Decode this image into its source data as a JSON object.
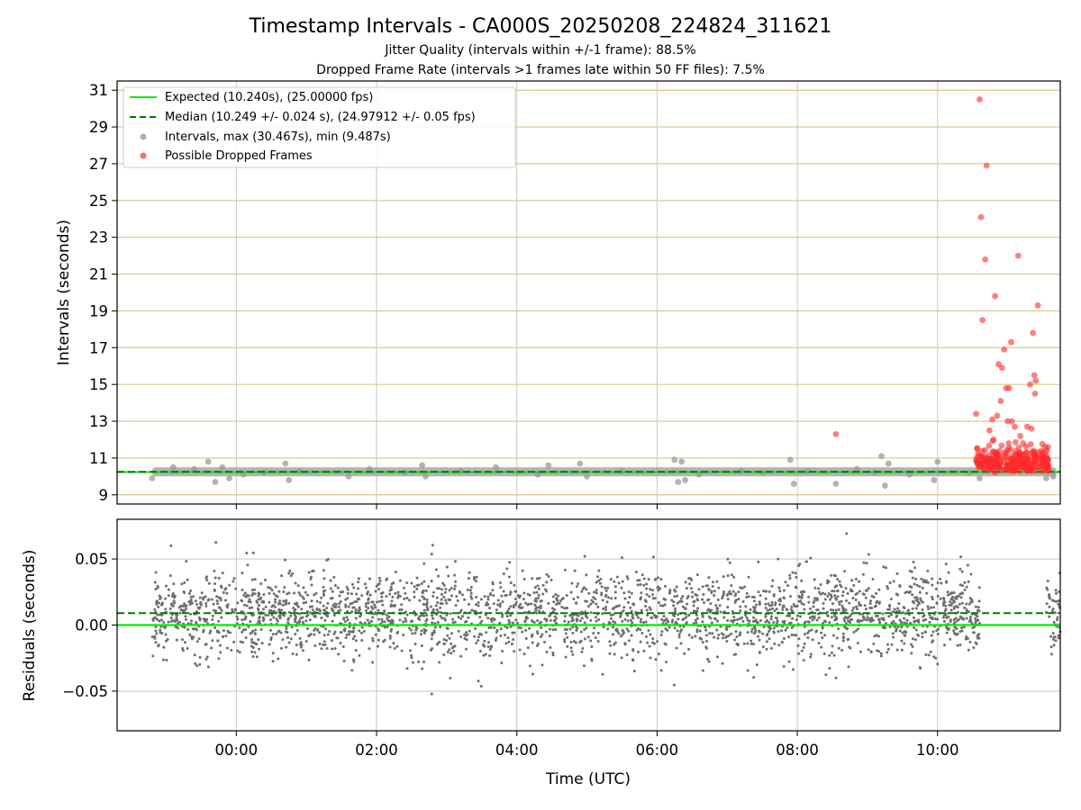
{
  "figure": {
    "title": "Timestamp Intervals - CA000S_20250208_224824_311621",
    "subtitle_1": "Jitter Quality (intervals within +/-1 frame): 88.5%",
    "subtitle_2": "Dropped Frame Rate (intervals >1 frames late within 50 FF files): 7.5%"
  },
  "colors": {
    "expected": "#00ee00",
    "median": "#007a00",
    "intervals": "#9a9a9a",
    "dropped": "#ff2a2a",
    "residuals": "#6e6e6e",
    "top_hgrid": "#d9c684",
    "grid": "#c8c8c8"
  },
  "chart_data": [
    {
      "type": "scatter",
      "panel": "intervals",
      "ylabel": "Intervals (seconds)",
      "xlabel": "",
      "x_unit": "hours UTC (continuous from 00:00)",
      "xlim": [
        -1.7,
        11.75
      ],
      "ylim": [
        8.5,
        31.5
      ],
      "x_ticks": [
        0,
        2,
        4,
        6,
        8,
        10
      ],
      "x_tick_labels": [
        "00:00",
        "02:00",
        "04:00",
        "06:00",
        "08:00",
        "10:00"
      ],
      "y_ticks": [
        9,
        11,
        13,
        15,
        17,
        19,
        21,
        23,
        25,
        27,
        29,
        31
      ],
      "y_tick_labels": [
        "9",
        "11",
        "13",
        "15",
        "17",
        "19",
        "21",
        "23",
        "25",
        "27",
        "29",
        "31"
      ],
      "legend_position": "top-left",
      "series": [
        {
          "name": "Expected (10.240s), (25.00000 fps)",
          "kind": "hline",
          "y": 10.24
        },
        {
          "name": "Median (10.249 +/- 0.024 s), (24.97912 +/- 0.05 fps)",
          "kind": "hline-dashed",
          "y": 10.249
        },
        {
          "name": "Intervals, max (30.467s), min (9.487s)",
          "kind": "band-and-points",
          "x_range": [
            -1.2,
            11.7
          ],
          "y_center": 10.25,
          "points": [
            [
              -1.2,
              9.9
            ],
            [
              -0.9,
              10.5
            ],
            [
              -0.6,
              10.4
            ],
            [
              -0.4,
              10.8
            ],
            [
              -0.3,
              9.7
            ],
            [
              -0.2,
              10.5
            ],
            [
              -0.1,
              9.9
            ],
            [
              0.1,
              10.1
            ],
            [
              0.4,
              10.2
            ],
            [
              0.7,
              10.7
            ],
            [
              0.75,
              9.8
            ],
            [
              0.9,
              10.3
            ],
            [
              1.6,
              10.0
            ],
            [
              1.9,
              10.4
            ],
            [
              2.4,
              10.2
            ],
            [
              2.65,
              10.6
            ],
            [
              2.7,
              10.0
            ],
            [
              3.2,
              10.3
            ],
            [
              3.7,
              10.5
            ],
            [
              4.3,
              10.1
            ],
            [
              4.45,
              10.6
            ],
            [
              4.9,
              10.7
            ],
            [
              5.0,
              10.0
            ],
            [
              5.5,
              10.3
            ],
            [
              6.25,
              10.9
            ],
            [
              6.3,
              9.7
            ],
            [
              6.35,
              10.8
            ],
            [
              6.4,
              9.8
            ],
            [
              6.6,
              10.1
            ],
            [
              7.2,
              10.3
            ],
            [
              7.5,
              10.2
            ],
            [
              7.9,
              10.9
            ],
            [
              7.95,
              9.6
            ],
            [
              8.15,
              10.3
            ],
            [
              8.55,
              9.6
            ],
            [
              8.85,
              10.4
            ],
            [
              9.1,
              10.2
            ],
            [
              9.2,
              11.1
            ],
            [
              9.25,
              9.5
            ],
            [
              9.3,
              10.7
            ],
            [
              9.6,
              10.1
            ],
            [
              9.95,
              9.8
            ],
            [
              10.0,
              10.8
            ],
            [
              10.45,
              10.2
            ],
            [
              10.6,
              9.9
            ],
            [
              11.55,
              9.9
            ],
            [
              11.65,
              10.0
            ]
          ]
        },
        {
          "name": "Possible Dropped Frames",
          "kind": "points",
          "points": [
            [
              8.55,
              12.3
            ],
            [
              10.55,
              13.4
            ],
            [
              10.6,
              30.5
            ],
            [
              10.62,
              24.1
            ],
            [
              10.64,
              18.5
            ],
            [
              10.68,
              21.8
            ],
            [
              10.7,
              26.9
            ],
            [
              10.74,
              12.5
            ],
            [
              10.78,
              13.1
            ],
            [
              10.8,
              12.0
            ],
            [
              10.82,
              19.8
            ],
            [
              10.85,
              13.3
            ],
            [
              10.87,
              16.1
            ],
            [
              10.9,
              14.1
            ],
            [
              10.92,
              15.9
            ],
            [
              10.95,
              16.9
            ],
            [
              10.98,
              14.8
            ],
            [
              11.0,
              13.0
            ],
            [
              11.02,
              14.8
            ],
            [
              11.05,
              17.3
            ],
            [
              11.06,
              13.0
            ],
            [
              11.1,
              12.7
            ],
            [
              11.15,
              22.0
            ],
            [
              11.18,
              12.2
            ],
            [
              11.22,
              11.8
            ],
            [
              11.28,
              12.7
            ],
            [
              11.32,
              15.0
            ],
            [
              11.34,
              12.6
            ],
            [
              11.36,
              17.8
            ],
            [
              11.38,
              15.5
            ],
            [
              11.39,
              14.5
            ],
            [
              11.4,
              15.2
            ],
            [
              11.43,
              19.3
            ]
          ],
          "dense_cluster": {
            "x_range": [
              10.55,
              11.6
            ],
            "y_range": [
              10.3,
              11.9
            ]
          }
        }
      ]
    },
    {
      "type": "scatter",
      "panel": "residuals",
      "ylabel": "Residuals (seconds)",
      "xlabel": "Time (UTC)",
      "xlim": [
        -1.7,
        11.75
      ],
      "ylim": [
        -0.08,
        0.08
      ],
      "x_ticks": [
        0,
        2,
        4,
        6,
        8,
        10
      ],
      "x_tick_labels": [
        "00:00",
        "02:00",
        "04:00",
        "06:00",
        "08:00",
        "10:00"
      ],
      "y_ticks": [
        0.05,
        0.0,
        -0.05
      ],
      "y_tick_labels": [
        "0.05",
        "0.00",
        "−0.05"
      ],
      "series": [
        {
          "kind": "hline",
          "y": 0.0
        },
        {
          "kind": "hline-dashed",
          "y": 0.009
        },
        {
          "kind": "points-cloud",
          "x_segments": [
            [
              -1.2,
              10.6
            ],
            [
              11.55,
              11.75
            ]
          ],
          "y_mean": 0.008,
          "y_sd": 0.016,
          "y_limits": [
            -0.08,
            0.08
          ]
        }
      ]
    }
  ]
}
